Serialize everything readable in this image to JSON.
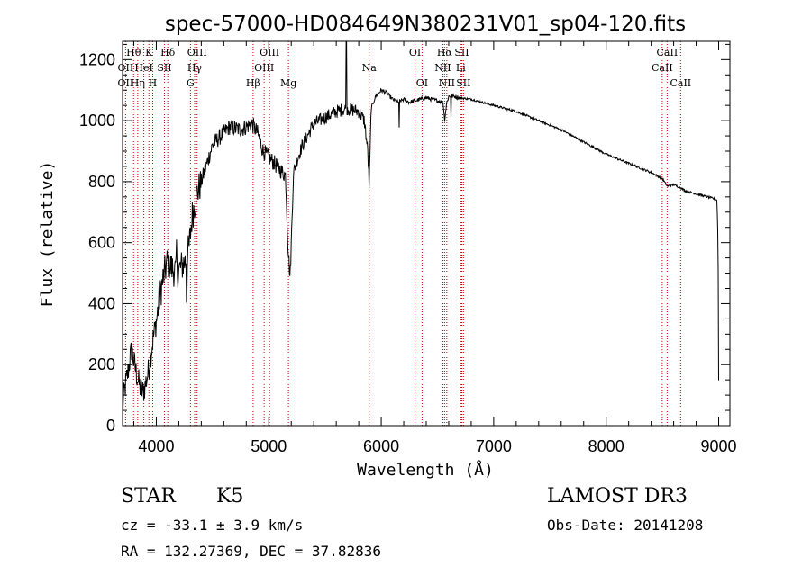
{
  "chart_data": {
    "type": "line",
    "title": "spec-57000-HD084649N380231V01_sp04-120.fits",
    "xlabel": "Wavelength (Å)",
    "ylabel": "Flux (relative)",
    "xlim": [
      3700,
      9100
    ],
    "ylim": [
      0,
      1260
    ],
    "xticks": [
      4000,
      5000,
      6000,
      7000,
      8000,
      9000
    ],
    "yticks": [
      0,
      200,
      400,
      600,
      800,
      1000,
      1200
    ],
    "spectrum_anchors": {
      "wavelength": [
        3700,
        3720,
        3750,
        3780,
        3800,
        3830,
        3860,
        3880,
        3900,
        3930,
        3950,
        3970,
        4000,
        4030,
        4060,
        4100,
        4130,
        4180,
        4220,
        4260,
        4290,
        4320,
        4360,
        4400,
        4450,
        4500,
        4550,
        4600,
        4650,
        4700,
        4750,
        4800,
        4850,
        4900,
        4950,
        5000,
        5050,
        5100,
        5150,
        5170,
        5190,
        5220,
        5260,
        5300,
        5400,
        5500,
        5600,
        5700,
        5800,
        5850,
        5880,
        5893,
        5910,
        5950,
        6000,
        6050,
        6100,
        6150,
        6200,
        6250,
        6300,
        6350,
        6400,
        6450,
        6500,
        6550,
        6563,
        6580,
        6600,
        6650,
        6700,
        6800,
        6900,
        7000,
        7200,
        7400,
        7600,
        7800,
        8000,
        8200,
        8400,
        8500,
        8542,
        8600,
        8662,
        8700,
        8800,
        8900,
        8950,
        8985,
        8995,
        9000
      ],
      "flux": [
        60,
        120,
        180,
        250,
        210,
        160,
        120,
        110,
        130,
        180,
        230,
        280,
        340,
        420,
        480,
        540,
        520,
        500,
        520,
        540,
        580,
        690,
        760,
        800,
        860,
        920,
        940,
        960,
        980,
        975,
        970,
        980,
        990,
        960,
        900,
        880,
        860,
        840,
        820,
        600,
        480,
        830,
        880,
        920,
        990,
        1010,
        1030,
        1040,
        1030,
        1000,
        900,
        780,
        1040,
        1080,
        1100,
        1090,
        1070,
        1060,
        1070,
        1060,
        1065,
        1070,
        1075,
        1070,
        1065,
        1060,
        1000,
        1055,
        1080,
        1080,
        1075,
        1070,
        1060,
        1050,
        1030,
        1000,
        970,
        930,
        890,
        860,
        830,
        810,
        785,
        790,
        780,
        770,
        760,
        750,
        745,
        740,
        600,
        150
      ]
    },
    "annotations": [
      {
        "wavelength": 3798,
        "label": "Hθ",
        "row": 0
      },
      {
        "wavelength": 3727,
        "label": "OII",
        "row": 1
      },
      {
        "wavelength": 3727,
        "label": "OII",
        "row": 2
      },
      {
        "wavelength": 3835,
        "label": "Hη",
        "row": 2
      },
      {
        "wavelength": 3889,
        "label": "HeI",
        "row": 1
      },
      {
        "wavelength": 3934,
        "label": "K",
        "row": 0
      },
      {
        "wavelength": 3968,
        "label": "H",
        "row": 2
      },
      {
        "wavelength": 4072,
        "label": "SII",
        "row": 1
      },
      {
        "wavelength": 4102,
        "label": "Hδ",
        "row": 0
      },
      {
        "wavelength": 4341,
        "label": "Hγ",
        "row": 1
      },
      {
        "wavelength": 4363,
        "label": "OIII",
        "row": 0
      },
      {
        "wavelength": 4304,
        "label": "G",
        "row": 2
      },
      {
        "wavelength": 4861,
        "label": "Hβ",
        "row": 2
      },
      {
        "wavelength": 5007,
        "label": "OIII",
        "row": 0
      },
      {
        "wavelength": 4959,
        "label": "OIII",
        "row": 1
      },
      {
        "wavelength": 5175,
        "label": "Mg",
        "row": 2
      },
      {
        "wavelength": 5893,
        "label": "Na",
        "row": 1
      },
      {
        "wavelength": 6300,
        "label": "OI",
        "row": 0
      },
      {
        "wavelength": 6363,
        "label": "OI",
        "row": 2
      },
      {
        "wavelength": 6563,
        "label": "Hα",
        "row": 0
      },
      {
        "wavelength": 6548,
        "label": "NII",
        "row": 1
      },
      {
        "wavelength": 6583,
        "label": "NII",
        "row": 2
      },
      {
        "wavelength": 6707,
        "label": "Li",
        "row": 1
      },
      {
        "wavelength": 6716,
        "label": "SII",
        "row": 0
      },
      {
        "wavelength": 6731,
        "label": "SII",
        "row": 2
      },
      {
        "wavelength": 8498,
        "label": "CaII",
        "row": 1
      },
      {
        "wavelength": 8542,
        "label": "CaII",
        "row": 0
      },
      {
        "wavelength": 8662,
        "label": "CaII",
        "row": 2
      }
    ]
  },
  "info": {
    "object_class": "STAR",
    "subclass": "K5",
    "survey": "LAMOST DR3",
    "cz": "cz = -33.1 ± 3.9 km/s",
    "obs_date": "Obs-Date: 20141208",
    "coords": "RA = 132.27369, DEC =  37.82836"
  }
}
